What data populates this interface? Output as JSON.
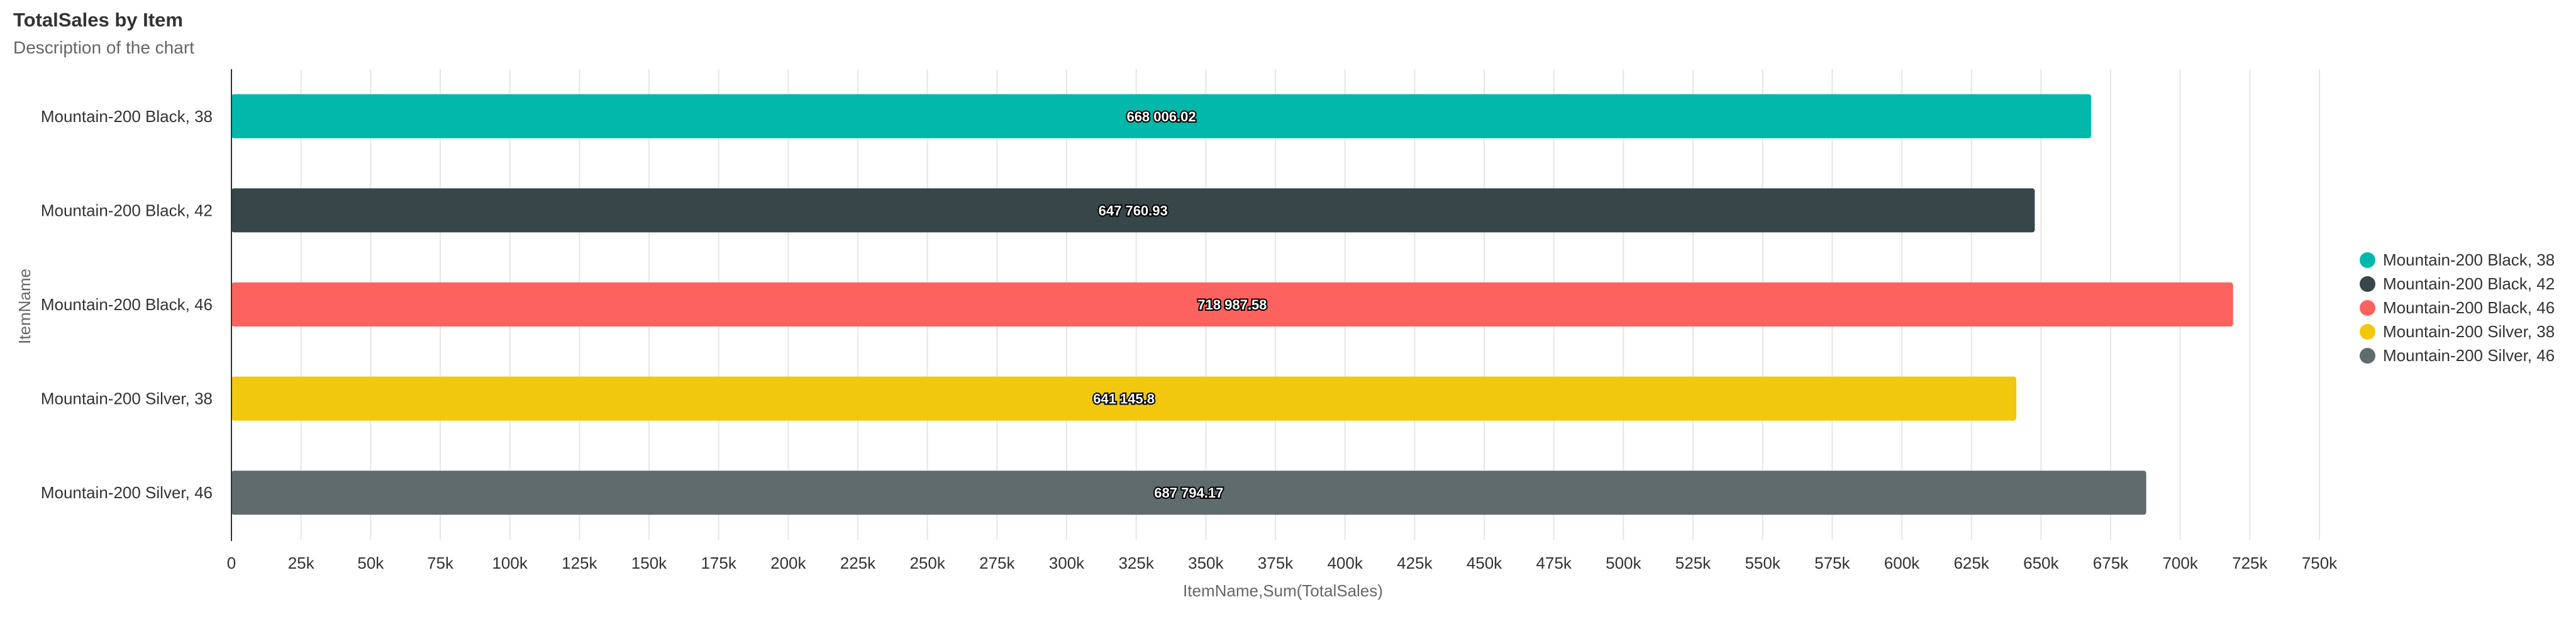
{
  "chart_data": {
    "type": "bar",
    "orientation": "horizontal",
    "title": "TotalSales by Item",
    "subtitle": "Description of the chart",
    "xlabel": "ItemName,Sum(TotalSales)",
    "ylabel": "ItemName",
    "categories": [
      "Mountain-200 Black, 38",
      "Mountain-200 Black, 42",
      "Mountain-200 Black, 46",
      "Mountain-200 Silver, 38",
      "Mountain-200 Silver, 46"
    ],
    "values": [
      668006.02,
      647760.93,
      718987.58,
      641145.8,
      687794.17
    ],
    "data_labels": [
      "668 006.02",
      "647 760.93",
      "718 987.58",
      "641 145.8",
      "687 794.17"
    ],
    "colors": [
      "#01b8aa",
      "#374649",
      "#fd625e",
      "#f2c80f",
      "#5f6b6d"
    ],
    "xlim": [
      0,
      750000
    ],
    "xticks": [
      0,
      25000,
      50000,
      75000,
      100000,
      125000,
      150000,
      175000,
      200000,
      225000,
      250000,
      275000,
      300000,
      325000,
      350000,
      375000,
      400000,
      425000,
      450000,
      475000,
      500000,
      525000,
      550000,
      575000,
      600000,
      625000,
      650000,
      675000,
      700000,
      725000,
      750000
    ],
    "xtick_labels": [
      "0",
      "25k",
      "50k",
      "75k",
      "100k",
      "125k",
      "150k",
      "175k",
      "200k",
      "225k",
      "250k",
      "275k",
      "300k",
      "325k",
      "350k",
      "375k",
      "400k",
      "425k",
      "450k",
      "475k",
      "500k",
      "525k",
      "550k",
      "575k",
      "600k",
      "625k",
      "650k",
      "675k",
      "700k",
      "725k",
      "750k"
    ],
    "grid": true,
    "legend": {
      "position": "right",
      "items": [
        "Mountain-200 Black, 38",
        "Mountain-200 Black, 42",
        "Mountain-200 Black, 46",
        "Mountain-200 Silver, 38",
        "Mountain-200 Silver, 46"
      ]
    }
  }
}
